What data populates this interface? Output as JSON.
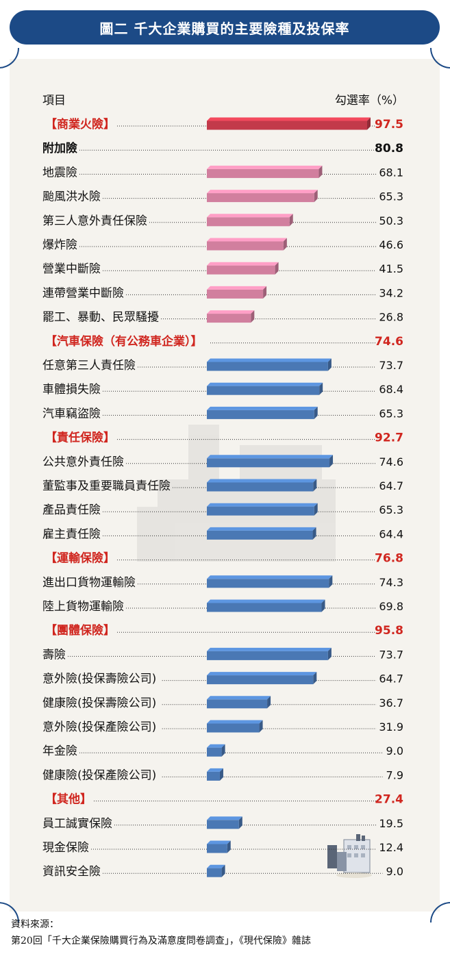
{
  "title": "圖二 千大企業購買的主要險種及投保率",
  "colors": {
    "banner": "#1c4a86",
    "category": "#d0261f",
    "red_bar": "#c23a4a",
    "pink_bar": "#d17f9e",
    "blue_bar": "#4a78b4"
  },
  "chart_data": {
    "type": "bar",
    "orientation": "horizontal",
    "xlabel": "項目",
    "ylabel": "勾選率（%）",
    "xlim": [
      0,
      100
    ],
    "rows": [
      {
        "label": "【商業火險】",
        "value": 97.5,
        "display": "97.5",
        "kind": "category",
        "bar": "red"
      },
      {
        "label": "附加險",
        "value": 80.8,
        "display": "80.8",
        "kind": "subtotal",
        "bar": "none"
      },
      {
        "label": "地震險",
        "value": 68.1,
        "display": "68.1",
        "kind": "item",
        "bar": "pink"
      },
      {
        "label": "颱風洪水險",
        "value": 65.3,
        "display": "65.3",
        "kind": "item",
        "bar": "pink"
      },
      {
        "label": "第三人意外責任保險",
        "value": 50.3,
        "display": "50.3",
        "kind": "item",
        "bar": "pink"
      },
      {
        "label": "爆炸險",
        "value": 46.6,
        "display": "46.6",
        "kind": "item",
        "bar": "pink"
      },
      {
        "label": "營業中斷險",
        "value": 41.5,
        "display": "41.5",
        "kind": "item",
        "bar": "pink"
      },
      {
        "label": "連帶營業中斷險",
        "value": 34.2,
        "display": "34.2",
        "kind": "item",
        "bar": "pink"
      },
      {
        "label": "罷工、暴動、民眾騷擾",
        "value": 26.8,
        "display": "26.8",
        "kind": "item",
        "bar": "pink"
      },
      {
        "label": "【汽車保險（有公務車企業）】",
        "value": 74.6,
        "display": "74.6",
        "kind": "category",
        "bar": "none"
      },
      {
        "label": "任意第三人責任險",
        "value": 73.7,
        "display": "73.7",
        "kind": "item",
        "bar": "blue"
      },
      {
        "label": "車體損失險",
        "value": 68.4,
        "display": "68.4",
        "kind": "item",
        "bar": "blue"
      },
      {
        "label": "汽車竊盜險",
        "value": 65.3,
        "display": "65.3",
        "kind": "item",
        "bar": "blue"
      },
      {
        "label": "【責任保險】",
        "value": 92.7,
        "display": "92.7",
        "kind": "category",
        "bar": "none"
      },
      {
        "label": "公共意外責任險",
        "value": 74.6,
        "display": "74.6",
        "kind": "item",
        "bar": "blue"
      },
      {
        "label": "董監事及重要職員責任險",
        "value": 64.7,
        "display": "64.7",
        "kind": "item",
        "bar": "blue"
      },
      {
        "label": "產品責任險",
        "value": 65.3,
        "display": "65.3",
        "kind": "item",
        "bar": "blue"
      },
      {
        "label": "雇主責任險",
        "value": 64.4,
        "display": "64.4",
        "kind": "item",
        "bar": "blue"
      },
      {
        "label": "【運輸保險】",
        "value": 76.8,
        "display": "76.8",
        "kind": "category",
        "bar": "none"
      },
      {
        "label": "進出口貨物運輸險",
        "value": 74.3,
        "display": "74.3",
        "kind": "item",
        "bar": "blue"
      },
      {
        "label": "陸上貨物運輸險",
        "value": 69.8,
        "display": "69.8",
        "kind": "item",
        "bar": "blue"
      },
      {
        "label": "【團體保險】",
        "value": 95.8,
        "display": "95.8",
        "kind": "category",
        "bar": "none"
      },
      {
        "label": "壽險",
        "value": 73.7,
        "display": "73.7",
        "kind": "item",
        "bar": "blue"
      },
      {
        "label": "意外險(投保壽險公司)",
        "value": 64.7,
        "display": "64.7",
        "kind": "item",
        "bar": "blue"
      },
      {
        "label": "健康險(投保壽險公司)",
        "value": 36.7,
        "display": "36.7",
        "kind": "item",
        "bar": "blue"
      },
      {
        "label": "意外險(投保產險公司)",
        "value": 31.9,
        "display": "31.9",
        "kind": "item",
        "bar": "blue"
      },
      {
        "label": "年金險",
        "value": 9.0,
        "display": "9.0",
        "kind": "item",
        "bar": "blue"
      },
      {
        "label": "健康險(投保產險公司)",
        "value": 7.9,
        "display": "7.9",
        "kind": "item",
        "bar": "blue"
      },
      {
        "label": "【其他】",
        "value": 27.4,
        "display": "27.4",
        "kind": "category",
        "bar": "none"
      },
      {
        "label": "員工誠實保險",
        "value": 19.5,
        "display": "19.5",
        "kind": "item",
        "bar": "blue"
      },
      {
        "label": "現金保險",
        "value": 12.4,
        "display": "12.4",
        "kind": "item",
        "bar": "blue"
      },
      {
        "label": "資訊安全險",
        "value": 9.0,
        "display": "9.0",
        "kind": "item",
        "bar": "blue"
      }
    ]
  },
  "source": {
    "label": "資料來源：",
    "text": "第20回「千大企業保險購買行為及滿意度問卷調查」，《現代保險》雜誌"
  }
}
